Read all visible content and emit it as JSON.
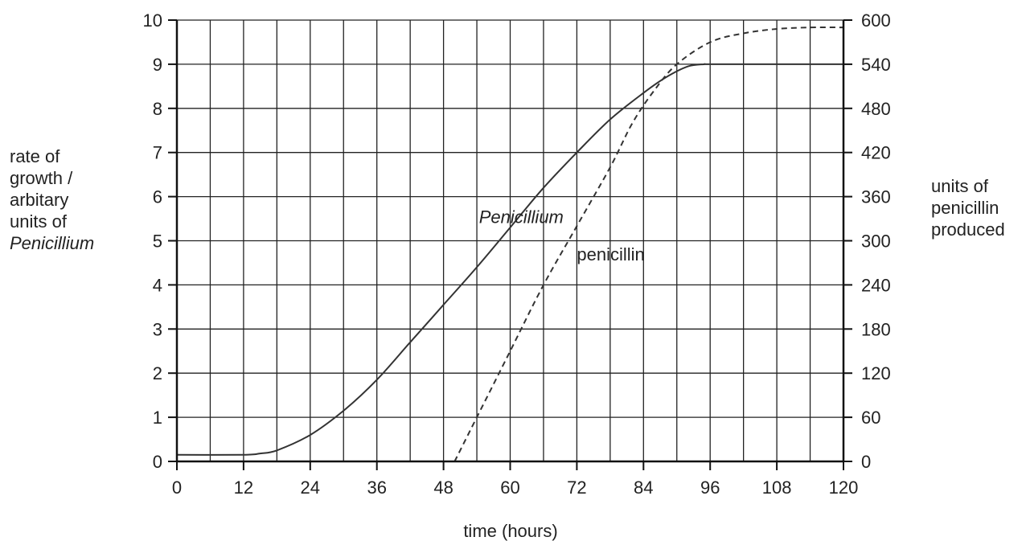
{
  "chart_data": {
    "type": "line",
    "xlabel": "time (hours)",
    "xlim": [
      0,
      120
    ],
    "x_ticks": [
      0,
      12,
      24,
      36,
      48,
      60,
      72,
      84,
      96,
      108,
      120
    ],
    "left_axis": {
      "label_lines": [
        "rate of",
        "growth /",
        "arbitary",
        "units of",
        "Penicillium"
      ],
      "ylim": [
        0,
        10
      ],
      "ticks": [
        0,
        1,
        2,
        3,
        4,
        5,
        6,
        7,
        8,
        9,
        10
      ]
    },
    "right_axis": {
      "label_lines": [
        "units of",
        "penicillin",
        "produced"
      ],
      "ylim": [
        0,
        600
      ],
      "ticks": [
        0,
        60,
        120,
        180,
        240,
        300,
        360,
        420,
        480,
        540,
        600
      ]
    },
    "grid": true,
    "series": [
      {
        "name": "Penicillium",
        "axis": "left",
        "style": "solid",
        "x": [
          0,
          12,
          15,
          18,
          24,
          30,
          36,
          42,
          48,
          54,
          60,
          66,
          72,
          78,
          84,
          88,
          92,
          95,
          96,
          108,
          120
        ],
        "y": [
          0.15,
          0.15,
          0.18,
          0.25,
          0.6,
          1.15,
          1.85,
          2.7,
          3.55,
          4.4,
          5.3,
          6.2,
          7.0,
          7.75,
          8.35,
          8.7,
          8.95,
          9.0,
          9.0,
          9.0,
          9.0
        ]
      },
      {
        "name": "penicillin",
        "axis": "right",
        "style": "dashed",
        "x": [
          50,
          54,
          60,
          66,
          72,
          78,
          82,
          86,
          90,
          96,
          102,
          108,
          114,
          120
        ],
        "y": [
          0,
          60,
          150,
          240,
          320,
          400,
          460,
          505,
          540,
          570,
          582,
          588,
          590,
          590
        ]
      }
    ],
    "annotations": [
      {
        "text": "Penicillium",
        "x": 62,
        "y": 5.4
      },
      {
        "text": "penicillin",
        "x": 72,
        "y": 4.55
      }
    ]
  }
}
